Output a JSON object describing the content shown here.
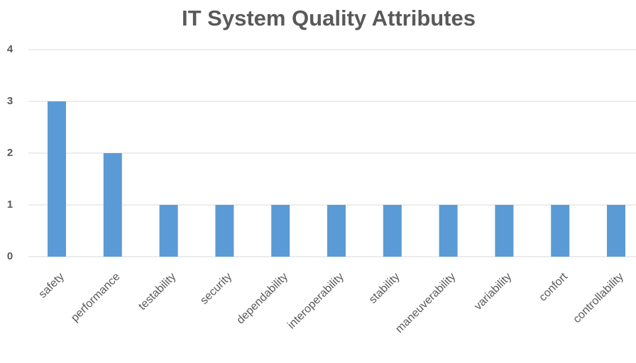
{
  "chart_data": {
    "type": "bar",
    "title": "IT System Quality Attributes",
    "categories": [
      "safety",
      "performance",
      "testability",
      "security",
      "dependability",
      "interoperability",
      "stability",
      "maneuverability",
      "variability",
      "confort",
      "controllability"
    ],
    "values": [
      3,
      2,
      1,
      1,
      1,
      1,
      1,
      1,
      1,
      1,
      1
    ],
    "color": "#5b9bd5",
    "ylim": [
      0,
      4
    ],
    "yticks": [
      0,
      1,
      2,
      3,
      4
    ],
    "grid": true
  }
}
